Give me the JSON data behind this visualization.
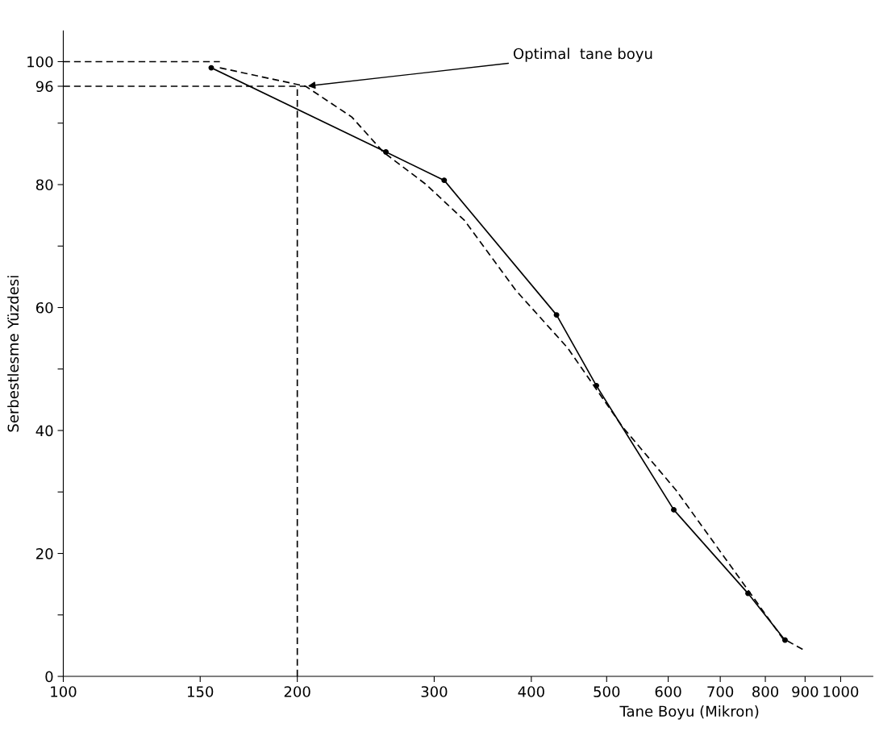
{
  "chart_data": {
    "type": "line",
    "xlabel": "Tane Boyu (Mikron)",
    "ylabel": "Serbestlesme Yüzdesi",
    "log": "x",
    "xlim": [
      100,
      1100
    ],
    "ylim": [
      0,
      105
    ],
    "xticks": [
      100,
      150,
      200,
      300,
      400,
      500,
      600,
      700,
      800,
      900,
      1000
    ],
    "yticks": [
      0,
      {
        "value": 10,
        "label": null
      },
      20,
      {
        "value": 30,
        "label": null
      },
      40,
      {
        "value": 50,
        "label": null
      },
      60,
      {
        "value": 70,
        "label": null
      },
      80,
      {
        "value": 90,
        "label": null
      },
      96,
      100
    ],
    "grid": false,
    "series": [
      {
        "color": "#000000",
        "line_style": "solid",
        "marker": "circle",
        "x": [
          155,
          260,
          309,
          431,
          485,
          610,
          760,
          848
        ],
        "values": [
          99.0,
          85.3,
          80.7,
          58.8,
          47.3,
          27.1,
          13.5,
          5.9
        ]
      },
      {
        "color": "#000000",
        "line_style": "dashed",
        "marker": "none",
        "x": [
          159,
          205,
          235,
          258,
          293,
          328,
          382,
          445,
          524,
          614,
          736,
          842,
          896
        ],
        "values": [
          99.0,
          96.0,
          91.0,
          85.3,
          80.0,
          74.2,
          62.8,
          53.5,
          40.6,
          30.3,
          16.5,
          6.2,
          4.3
        ]
      },
      {
        "color": "#000000",
        "line_style": "dashed",
        "marker": "none",
        "x": [
          100,
          159
        ],
        "values": [
          100,
          100
        ]
      },
      {
        "color": "#000000",
        "line_style": "dashed",
        "marker": "none",
        "x": [
          100,
          205
        ],
        "values": [
          96,
          96
        ]
      },
      {
        "color": "#000000",
        "line_style": "dashed",
        "marker": "none",
        "x": [
          200,
          200
        ],
        "values": [
          0,
          96
        ]
      }
    ],
    "annotations": [
      {
        "text": "Optimal  tane boyu",
        "x": 205,
        "y": 96
      }
    ]
  }
}
